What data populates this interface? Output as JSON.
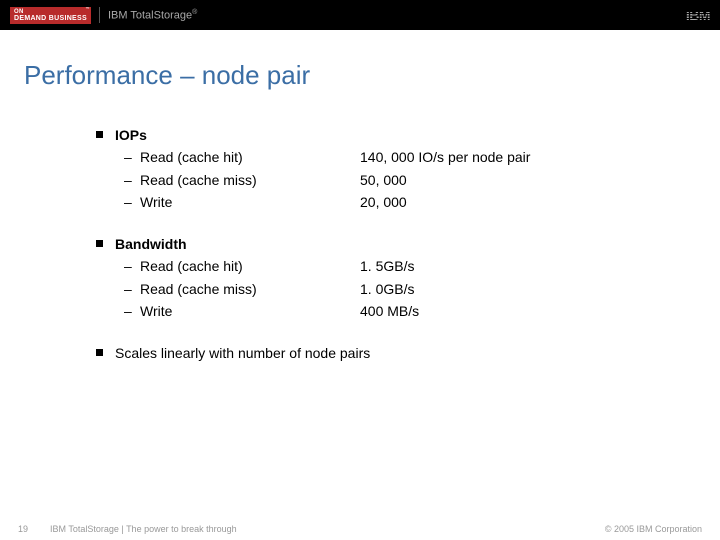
{
  "header": {
    "badge_line1": "ON",
    "badge_line2": "DEMAND BUSINESS",
    "badge_tm": "™",
    "product": "IBM TotalStorage",
    "product_reg": "®",
    "logo_text": "IBM"
  },
  "title": "Performance – node pair",
  "sections": [
    {
      "heading": "IOPs",
      "rows": [
        {
          "label": "Read (cache hit)",
          "value": "140, 000 IO/s per node pair"
        },
        {
          "label": "Read (cache miss)",
          "value": "50, 000"
        },
        {
          "label": "Write",
          "value": "20, 000"
        }
      ]
    },
    {
      "heading": "Bandwidth",
      "rows": [
        {
          "label": "Read (cache hit)",
          "value": "1. 5GB/s"
        },
        {
          "label": "Read (cache miss)",
          "value": "1. 0GB/s"
        },
        {
          "label": "Write",
          "value": "400 MB/s"
        }
      ]
    }
  ],
  "final_bullet": "Scales linearly with number of node pairs",
  "footer": {
    "page": "19",
    "tagline": "IBM TotalStorage  |  The power to break through",
    "copyright": "© 2005 IBM Corporation"
  },
  "colors": {
    "header_bg": "#000000",
    "badge_bg": "#b82b2b",
    "header_text": "#a8a8a8",
    "title_color": "#3b6ea5",
    "body_text": "#000000",
    "footer_text": "#999999",
    "background": "#ffffff"
  }
}
